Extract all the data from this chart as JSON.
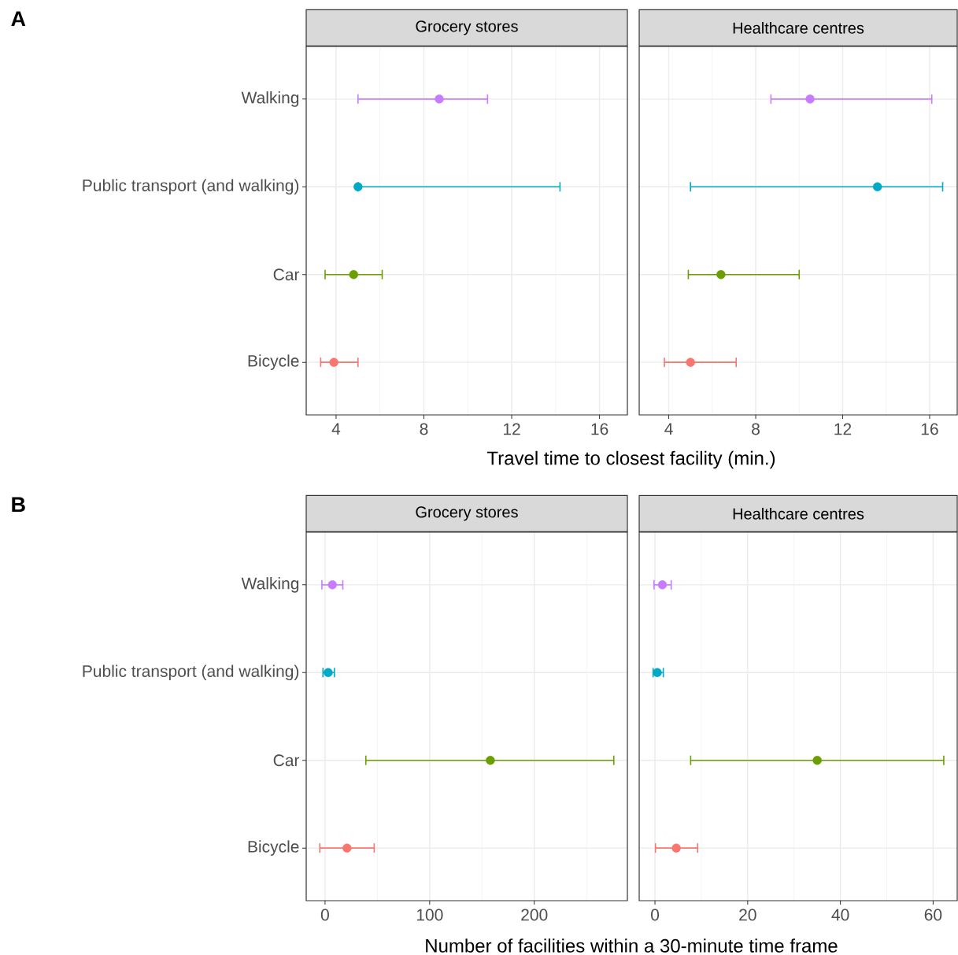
{
  "chart_data": [
    {
      "type": "scatter",
      "orientation": "horizontal",
      "title": "Grocery stores",
      "xlabel": "Travel time to closest facility (min.)",
      "annotations": [
        "A"
      ],
      "categories": [
        "Walking",
        "Public transport (and walking)",
        "Car",
        "Bicycle"
      ],
      "values": [
        8.7,
        5.0,
        4.8,
        3.9
      ],
      "errors": [
        [
          5.0,
          10.9
        ],
        [
          5.0,
          14.2
        ],
        [
          3.5,
          6.1
        ],
        [
          3.3,
          5.0
        ]
      ],
      "colors": [
        "#c77cff",
        "#00a9c7",
        "#6b9e00",
        "#f8766d"
      ],
      "xlim": [
        2.64,
        17.27
      ],
      "xticks": [
        4,
        {
          "value": 6,
          "label": null
        },
        8,
        {
          "value": 10,
          "label": null
        },
        12,
        {
          "value": 14,
          "label": null
        },
        16
      ],
      "grid": true,
      "marker": "circle"
    },
    {
      "type": "scatter",
      "orientation": "horizontal",
      "title": "Healthcare centres",
      "values": [
        10.5,
        13.6,
        6.4,
        5.0
      ],
      "errors": [
        [
          8.7,
          16.1
        ],
        [
          5.0,
          16.6
        ],
        [
          4.9,
          10.0
        ],
        [
          3.8,
          7.1
        ]
      ],
      "colors": [
        "#c77cff",
        "#00a9c7",
        "#6b9e00",
        "#f8766d"
      ],
      "xlim": [
        2.64,
        17.27
      ],
      "xticks": [
        4,
        {
          "value": 6,
          "label": null
        },
        8,
        {
          "value": 10,
          "label": null
        },
        12,
        {
          "value": 14,
          "label": null
        },
        16
      ],
      "grid": true,
      "marker": "circle",
      "tick_labels": "x"
    },
    {
      "type": "scatter",
      "orientation": "horizontal",
      "title": "Grocery stores",
      "xlabel": "Number of facilities within a 30-minute time frame",
      "annotations": [
        "B"
      ],
      "categories": [
        "Walking",
        "Public transport (and walking)",
        "Car",
        "Bicycle"
      ],
      "values": [
        7,
        3,
        158,
        21
      ],
      "errors": [
        [
          -3,
          17
        ],
        [
          -2,
          9
        ],
        [
          39,
          276
        ],
        [
          -5,
          47
        ]
      ],
      "colors": [
        "#c77cff",
        "#00a9c7",
        "#6b9e00",
        "#f8766d"
      ],
      "xlim": [
        -18,
        289
      ],
      "xticks": [
        0,
        {
          "value": 50,
          "label": null
        },
        100,
        {
          "value": 150,
          "label": null
        },
        200,
        {
          "value": 250,
          "label": null
        }
      ],
      "grid": true,
      "marker": "circle"
    },
    {
      "type": "scatter",
      "orientation": "horizontal",
      "title": "Healthcare centres",
      "values": [
        1.6,
        0.5,
        35.0,
        4.6
      ],
      "errors": [
        [
          -0.2,
          3.5
        ],
        [
          -0.4,
          1.8
        ],
        [
          7.7,
          62.3
        ],
        [
          0.1,
          9.2
        ]
      ],
      "colors": [
        "#c77cff",
        "#00a9c7",
        "#6b9e00",
        "#f8766d"
      ],
      "xlim": [
        -3.4,
        65.2
      ],
      "xticks": [
        0,
        {
          "value": 10,
          "label": null
        },
        20,
        {
          "value": 30,
          "label": null
        },
        40,
        {
          "value": 50,
          "label": null
        },
        60
      ],
      "grid": true,
      "marker": "circle",
      "tick_labels": "x"
    }
  ]
}
